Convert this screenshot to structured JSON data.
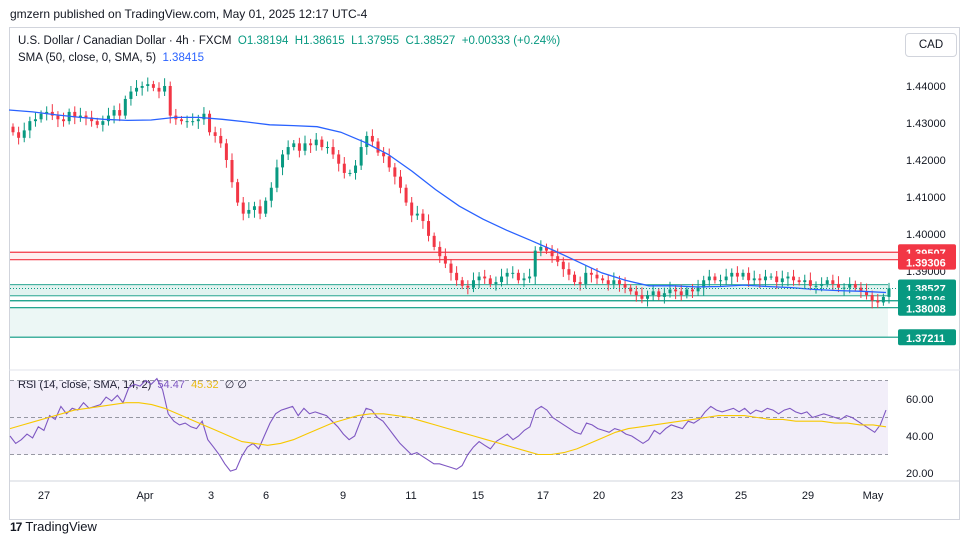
{
  "header": {
    "text": "gmzern published on TradingView.com, May 01, 2025 12:17 UTC-4"
  },
  "legend": {
    "symbol": "U.S. Dollar / Canadian Dollar · 4h · FXCM",
    "open": "O1.38194",
    "high": "H1.38615",
    "low": "L1.37955",
    "close": "C1.38527",
    "change": "+0.00333 (+0.24%)",
    "sma_label": "SMA (50, close, 0, SMA, 5)",
    "sma_value": "1.38415"
  },
  "currency": "CAD",
  "rsi_legend": {
    "label": "RSI (14, close, SMA, 14, 2)",
    "value": "54.47",
    "sma_value": "45.32",
    "extra": "∅ ∅"
  },
  "brand": {
    "logo": "17",
    "name": "TradingView"
  },
  "colors": {
    "up": "#089981",
    "down": "#f23645",
    "sma": "#2962ff",
    "rsi": "#7e57c2",
    "rsi_sma": "#f7c800",
    "price_tag": "#089981",
    "red_tag": "#f23645"
  },
  "chart_data": [
    {
      "type": "candlestick",
      "title": "U.S. Dollar / Canadian Dollar · 4h · FXCM",
      "x_tick_labels": [
        "27",
        "Apr",
        "3",
        "6",
        "9",
        "11",
        "15",
        "17",
        "20",
        "23",
        "25",
        "29",
        "May"
      ],
      "y_tick_labels": [
        "1.44000",
        "1.43000",
        "1.42000",
        "1.41000",
        "1.40000",
        "1.39000",
        "1.38000"
      ],
      "ylim": [
        1.3685,
        1.4475
      ],
      "close_path": [
        1.4275,
        1.426,
        1.428,
        1.4305,
        1.431,
        1.4325,
        1.433,
        1.432,
        1.431,
        1.4305,
        1.433,
        1.4315,
        1.432,
        1.4315,
        1.4305,
        1.4295,
        1.4305,
        1.432,
        1.4335,
        1.432,
        1.4365,
        1.4385,
        1.4395,
        1.44,
        1.4405,
        1.4395,
        1.4385,
        1.44,
        1.432,
        1.431,
        1.4305,
        1.4305,
        1.4305,
        1.431,
        1.4325,
        1.4275,
        1.4265,
        1.4245,
        1.42,
        1.414,
        1.4085,
        1.4055,
        1.4065,
        1.4075,
        1.4055,
        1.409,
        1.4125,
        1.418,
        1.4215,
        1.4235,
        1.4245,
        1.4225,
        1.4245,
        1.424,
        1.4255,
        1.4235,
        1.4235,
        1.4215,
        1.419,
        1.4165,
        1.4165,
        1.4185,
        1.4235,
        1.4265,
        1.425,
        1.422,
        1.421,
        1.418,
        1.4155,
        1.4125,
        1.4085,
        1.405,
        1.4055,
        1.4035,
        1.3995,
        1.3965,
        1.394,
        1.392,
        1.3895,
        1.3875,
        1.386,
        1.3855,
        1.3875,
        1.3885,
        1.388,
        1.3865,
        1.387,
        1.3885,
        1.3895,
        1.3895,
        1.3875,
        1.388,
        1.3885,
        1.3955,
        1.3965,
        1.3955,
        1.394,
        1.3925,
        1.3905,
        1.389,
        1.387,
        1.3865,
        1.3895,
        1.389,
        1.388,
        1.3875,
        1.3865,
        1.3875,
        1.3865,
        1.3855,
        1.3845,
        1.3835,
        1.3825,
        1.3835,
        1.3845,
        1.383,
        1.384,
        1.385,
        1.3845,
        1.3835,
        1.385,
        1.3845,
        1.3855,
        1.3875,
        1.3885,
        1.3875,
        1.3875,
        1.3885,
        1.3895,
        1.3885,
        1.3895,
        1.3875,
        1.388,
        1.3875,
        1.3885,
        1.3885,
        1.387,
        1.388,
        1.3885,
        1.3875,
        1.387,
        1.3875,
        1.386,
        1.386,
        1.3865,
        1.3875,
        1.3865,
        1.3855,
        1.3855,
        1.3865,
        1.3855,
        1.3845,
        1.3835,
        1.382,
        1.3815,
        1.383,
        1.3853
      ],
      "sma_path": [
        1.4335,
        1.433,
        1.4322,
        1.4315,
        1.431,
        1.4307,
        1.4308,
        1.4315,
        1.4315,
        1.431,
        1.4303,
        1.4295,
        1.4293,
        1.429,
        1.4275,
        1.4248,
        1.4215,
        1.417,
        1.412,
        1.4075,
        1.404,
        1.401,
        1.3983,
        1.3955,
        1.3925,
        1.3895,
        1.3875,
        1.386,
        1.386,
        1.3857,
        1.3858,
        1.3862,
        1.3858,
        1.3855,
        1.385,
        1.3847,
        1.3845,
        1.3842
      ],
      "sma_x_start": 9,
      "sma_x_end": 886,
      "sma_last": 1.38415,
      "last_price": 1.38527,
      "countdown": "42:15",
      "horizontal_levels": [
        {
          "value": 1.39507,
          "label": "1.39507",
          "tag": "red"
        },
        {
          "value": 1.39306,
          "label": "1.39306",
          "tag": "red"
        },
        {
          "value": 1.38196,
          "label": "1.38196",
          "tag": "green"
        },
        {
          "value": 1.38008,
          "label": "1.38008",
          "tag": "green"
        },
        {
          "value": 1.37211,
          "label": "1.37211",
          "tag": "green"
        }
      ]
    },
    {
      "type": "line",
      "title": "RSI (14, close, SMA, 14, 2)",
      "y_tick_labels": [
        "60.00",
        "40.00",
        "20.00"
      ],
      "ylim": [
        16,
        74
      ],
      "bands": [
        70,
        50,
        30
      ],
      "series": [
        {
          "name": "RSI",
          "values": [
            40,
            36,
            38,
            41,
            39,
            45,
            43,
            51,
            49,
            56,
            52,
            55,
            54,
            58,
            55,
            56,
            57,
            61,
            59,
            62,
            58,
            66,
            68,
            67,
            70,
            68,
            71,
            65,
            52,
            48,
            46,
            47,
            45,
            44,
            48,
            38,
            34,
            30,
            25,
            21,
            22,
            29,
            34,
            36,
            33,
            40,
            47,
            52,
            54,
            55,
            56,
            51,
            55,
            52,
            53,
            52,
            51,
            48,
            45,
            41,
            38,
            40,
            48,
            55,
            54,
            50,
            48,
            44,
            40,
            36,
            33,
            30,
            31,
            29,
            27,
            25,
            25,
            24,
            23,
            22,
            24,
            30,
            34,
            37,
            35,
            33,
            37,
            39,
            41,
            38,
            40,
            43,
            45,
            54,
            56,
            54,
            50,
            48,
            46,
            44,
            42,
            41,
            47,
            46,
            44,
            43,
            42,
            44,
            43,
            41,
            40,
            38,
            36,
            38,
            43,
            41,
            44,
            46,
            45,
            44,
            48,
            47,
            49,
            53,
            56,
            54,
            53,
            54,
            55,
            53,
            55,
            52,
            54,
            53,
            55,
            54,
            52,
            54,
            55,
            53,
            52,
            53,
            50,
            51,
            52,
            51,
            50,
            49,
            51,
            50,
            48,
            46,
            44,
            42,
            46,
            54
          ]
        },
        {
          "name": "RSI SMA",
          "values": [
            44,
            46,
            48,
            50,
            52,
            54,
            55,
            56,
            57,
            58,
            58,
            57,
            55,
            52,
            49,
            46,
            43,
            40,
            37,
            36,
            35,
            36,
            38,
            41,
            44,
            47,
            49,
            51,
            52,
            52,
            51,
            50,
            48,
            46,
            44,
            42,
            40,
            38,
            36,
            34,
            32,
            30,
            30,
            31,
            33,
            36,
            39,
            42,
            44,
            45,
            46,
            47,
            48,
            49,
            50,
            51,
            51,
            51,
            50,
            49,
            49,
            48,
            48,
            48,
            47,
            47,
            46,
            46,
            45
          ]
        }
      ],
      "value": 54.47,
      "sma_value": 45.32
    }
  ]
}
